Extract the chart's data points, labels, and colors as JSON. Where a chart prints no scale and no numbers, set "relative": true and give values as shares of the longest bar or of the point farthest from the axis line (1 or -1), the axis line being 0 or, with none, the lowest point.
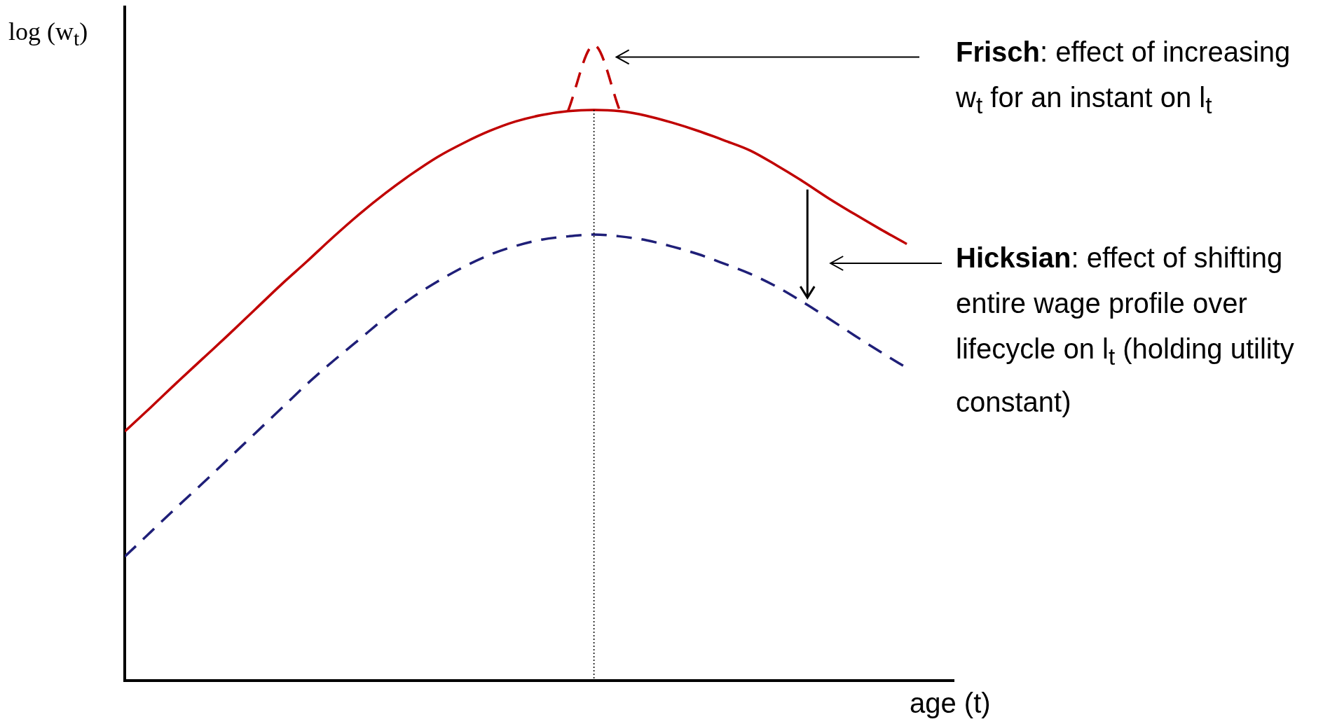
{
  "chart_data": {
    "type": "line",
    "relative": true,
    "ylabel": "log (w$_{t}$)",
    "xlabel": "age (t)",
    "legend": false,
    "grid": false,
    "marker": "none",
    "categories": [
      null,
      null,
      null,
      null,
      null,
      null,
      null,
      null,
      null,
      null,
      null,
      null,
      null,
      null,
      null,
      null,
      null,
      null,
      null,
      null,
      null,
      null,
      null,
      null,
      null,
      null,
      null,
      null,
      null,
      null,
      null
    ],
    "series": [
      {
        "color": "#c00000",
        "line_style": "solid",
        "values": [
          0.392,
          0.43,
          0.469,
          0.507,
          0.545,
          0.584,
          0.623,
          0.66,
          0.698,
          0.734,
          0.767,
          0.797,
          0.824,
          0.846,
          0.865,
          0.88,
          0.89,
          0.896,
          0.898,
          0.896,
          0.889,
          0.878,
          0.865,
          0.85,
          0.834,
          0.811,
          0.786,
          0.759,
          0.734,
          0.71,
          0.687
        ]
      },
      {
        "color": "#1f1f78",
        "line_style": "dashed",
        "values": [
          0.195,
          0.234,
          0.273,
          0.311,
          0.35,
          0.389,
          0.428,
          0.467,
          0.503,
          0.537,
          0.571,
          0.602,
          0.628,
          0.651,
          0.67,
          0.684,
          0.694,
          0.699,
          0.702,
          0.699,
          0.693,
          0.683,
          0.671,
          0.656,
          0.64,
          0.62,
          0.596,
          0.57,
          0.543,
          0.517,
          0.492
        ]
      },
      {
        "color": "#c00000",
        "line_style": "dashed",
        "values": [
          null,
          null,
          null,
          null,
          null,
          null,
          null,
          null,
          null,
          null,
          null,
          null,
          null,
          null,
          null,
          null,
          null,
          0.896,
          1,
          0.896,
          null,
          null,
          null,
          null,
          null,
          null,
          null,
          null,
          null,
          null,
          null
        ]
      }
    ],
    "annotations": [
      "Frisch: effect of increasing w$_{t}$ for an instant on l$_{t}$",
      "Hicksian: effect of shifting entire wage profile over lifecycle on l$_{t}$ (holding utility constant)"
    ]
  }
}
